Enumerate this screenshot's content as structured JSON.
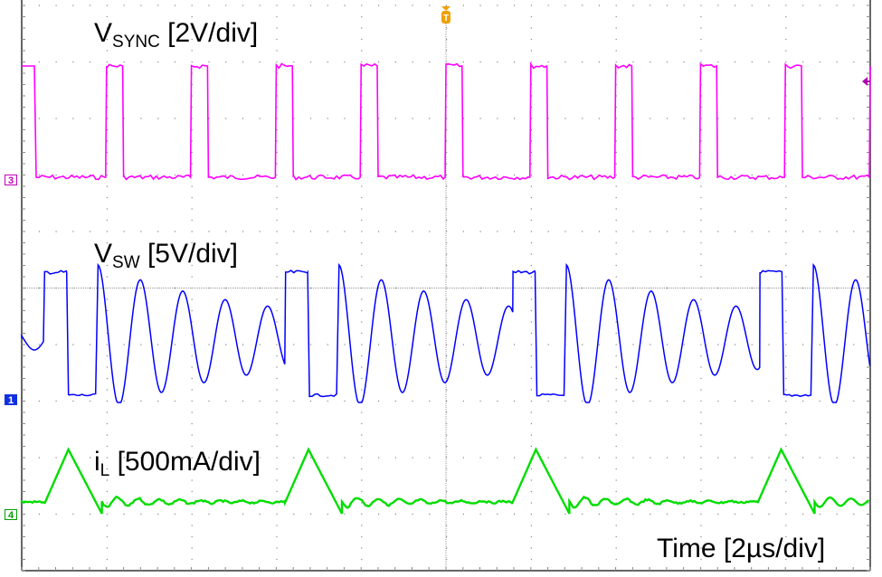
{
  "chart_data": {
    "type": "line",
    "title": "",
    "xlabel": "Time [2µs/div]",
    "ylabel": "",
    "grid": true,
    "grid_divisions": {
      "x": 10,
      "y": 10
    },
    "x": {
      "unit": "us",
      "per_div": 2,
      "range": [
        -10,
        10
      ]
    },
    "series": [
      {
        "name": "VSYNC",
        "label_main": "V",
        "label_sub": "SYNC",
        "label_rest": " [2V/div]",
        "channel": 3,
        "color": "#ff00ff",
        "scale": "2V/div",
        "shape": "pulse train",
        "period_us": 2.0,
        "high_width_us": 0.4,
        "high_div_above_ref": 2.0,
        "low_div_above_ref": 0.0,
        "rising_edges_div": [
          1.0,
          2.0,
          3.0,
          4.0,
          5.0,
          6.0,
          7.0,
          8.0,
          9.0,
          10.0
        ]
      },
      {
        "name": "VSW",
        "label_main": "V",
        "label_sub": "SW",
        "label_rest": " [5V/div]",
        "channel": 1,
        "color": "#0000ff",
        "scale": "5V/div",
        "shape": "pulse with decaying ringing",
        "high_div_above_ref": 2.2,
        "low_div_above_ref": 0.1,
        "pulse_rising_edges_div": [
          0.27,
          3.11,
          5.79,
          8.7
        ],
        "pulse_width_div": 0.26,
        "ringing_start_offset_div": 0.4,
        "ringing_period_div": 0.5
      },
      {
        "name": "iL",
        "label_main": "i",
        "label_sub": "L",
        "label_rest": " [500mA/div]",
        "channel": 4,
        "color": "#00dd00",
        "scale": "500mA/div",
        "shape": "triangular pulses",
        "base_div_above_ref": 0.1,
        "peak_div_above_ref": 1.1,
        "peak_positions_div": [
          0.55,
          3.38,
          6.06,
          8.95
        ]
      }
    ],
    "trigger": {
      "marker": "T",
      "position_div": 5.0,
      "color": "#f0a000"
    },
    "trigger_level_marker": {
      "color": "#b000b0"
    }
  },
  "labels": {
    "vsync_main": "V",
    "vsync_sub": "SYNC",
    "vsync_rest": " [2V/div]",
    "vsw_main": "V",
    "vsw_sub": "SW",
    "vsw_rest": " [5V/div]",
    "il_main": "i",
    "il_sub": "L",
    "il_rest": " [500mA/div]",
    "time": "Time [2µs/div]"
  },
  "markers": {
    "ch3": "3",
    "ch1": "1",
    "ch4": "4",
    "trigger": "T"
  }
}
